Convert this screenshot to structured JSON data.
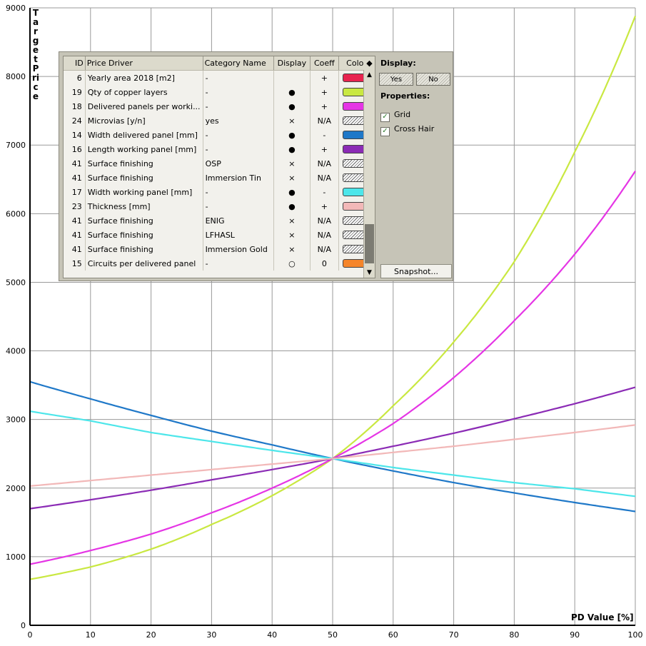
{
  "chart_data": {
    "type": "line",
    "xlabel": "PD Value [%]",
    "ylabel": "Target Price",
    "xlim": [
      0,
      100
    ],
    "ylim": [
      0,
      9000
    ],
    "xticks": [
      0,
      10,
      20,
      30,
      40,
      50,
      60,
      70,
      80,
      90,
      100
    ],
    "yticks": [
      0,
      1000,
      2000,
      3000,
      4000,
      5000,
      6000,
      7000,
      8000,
      9000
    ],
    "grid": true,
    "legend_placement": "top-left",
    "x": [
      0,
      10,
      20,
      30,
      40,
      50,
      60,
      70,
      80,
      90,
      100
    ],
    "series": [
      {
        "name": "Qty of copper layers",
        "color": "#c9e841",
        "values": [
          670,
          850,
          1110,
          1470,
          1890,
          2430,
          3200,
          4130,
          5300,
          6900,
          8880
        ]
      },
      {
        "name": "Delivered panels per working panel",
        "color": "#e535e5",
        "values": [
          890,
          1090,
          1330,
          1640,
          2000,
          2430,
          2940,
          3610,
          4440,
          5410,
          6620
        ]
      },
      {
        "name": "Width delivered panel [mm]",
        "color": "#1f78c8",
        "values": [
          3550,
          3300,
          3060,
          2830,
          2630,
          2430,
          2250,
          2080,
          1930,
          1790,
          1660
        ]
      },
      {
        "name": "Length working panel [mm]",
        "color": "#8b2bb5",
        "values": [
          1700,
          1830,
          1970,
          2120,
          2270,
          2430,
          2610,
          2800,
          3010,
          3230,
          3470
        ]
      },
      {
        "name": "Width working panel [mm]",
        "color": "#4de6ea",
        "values": [
          3120,
          2980,
          2810,
          2680,
          2550,
          2430,
          2300,
          2190,
          2080,
          1990,
          1880
        ]
      },
      {
        "name": "Thickness [mm]",
        "color": "#f2b8b8",
        "values": [
          2030,
          2110,
          2190,
          2270,
          2350,
          2430,
          2520,
          2610,
          2710,
          2810,
          2920
        ]
      }
    ]
  },
  "legend": {
    "headers": {
      "id": "ID",
      "driver": "Price Driver",
      "category": "Category Name",
      "display": "Display",
      "coeff": "Coeff",
      "color": "Color"
    },
    "sort_glyph": "◆",
    "rows": [
      {
        "id": "6",
        "driver": "Yearly area 2018 [m2]",
        "category": "-",
        "display": "",
        "coeff": "+",
        "color": "#e8234f"
      },
      {
        "id": "19",
        "driver": "Qty of copper layers",
        "category": "-",
        "display": "●",
        "coeff": "+",
        "color": "#c9e841"
      },
      {
        "id": "18",
        "driver": "Delivered panels per worki...",
        "category": "-",
        "display": "●",
        "coeff": "+",
        "color": "#e535e5"
      },
      {
        "id": "24",
        "driver": "Microvias [y/n]",
        "category": "yes",
        "display": "×",
        "coeff": "N/A",
        "color": "hatch"
      },
      {
        "id": "14",
        "driver": "Width delivered panel [mm]",
        "category": "-",
        "display": "●",
        "coeff": "-",
        "color": "#1f78c8"
      },
      {
        "id": "16",
        "driver": "Length working panel [mm]",
        "category": "-",
        "display": "●",
        "coeff": "+",
        "color": "#8b2bb5"
      },
      {
        "id": "41",
        "driver": "Surface finishing",
        "category": "OSP",
        "display": "×",
        "coeff": "N/A",
        "color": "hatch"
      },
      {
        "id": "41",
        "driver": "Surface finishing",
        "category": "Immersion Tin",
        "display": "×",
        "coeff": "N/A",
        "color": "hatch"
      },
      {
        "id": "17",
        "driver": "Width working panel [mm]",
        "category": "-",
        "display": "●",
        "coeff": "-",
        "color": "#4de6ea"
      },
      {
        "id": "23",
        "driver": "Thickness [mm]",
        "category": "-",
        "display": "●",
        "coeff": "+",
        "color": "#f2b8b8"
      },
      {
        "id": "41",
        "driver": "Surface finishing",
        "category": "ENIG",
        "display": "×",
        "coeff": "N/A",
        "color": "hatch"
      },
      {
        "id": "41",
        "driver": "Surface finishing",
        "category": "LFHASL",
        "display": "×",
        "coeff": "N/A",
        "color": "hatch"
      },
      {
        "id": "41",
        "driver": "Surface finishing",
        "category": "Immersion Gold",
        "display": "×",
        "coeff": "N/A",
        "color": "hatch"
      },
      {
        "id": "15",
        "driver": "Circuits per delivered panel",
        "category": "-",
        "display": "○",
        "coeff": "0",
        "color": "#f5852a"
      }
    ]
  },
  "side_panel": {
    "display_label": "Display:",
    "yes_label": "Yes",
    "no_label": "No",
    "properties_label": "Properties:",
    "grid_label": "Grid",
    "grid_checked": true,
    "crosshair_label": "Cross Hair",
    "crosshair_checked": true,
    "snapshot_label": "Snapshot..."
  }
}
